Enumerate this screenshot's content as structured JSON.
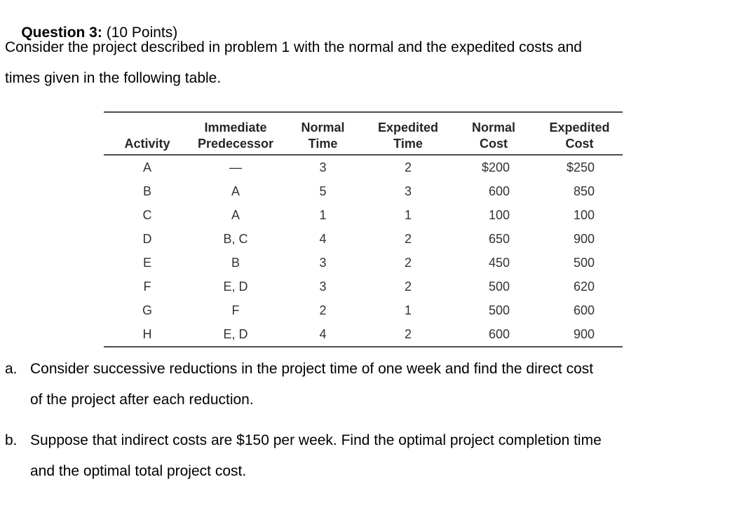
{
  "page": {
    "title_bold": "Question 3:",
    "title_rest": " (10 Points)",
    "intro_line1": "Consider the project described in problem 1 with the normal and the expedited costs and",
    "intro_line2": "times given in the following table."
  },
  "table": {
    "header_row1": [
      "",
      "Immediate",
      "Normal",
      "Expedited",
      "Normal",
      "Expedited"
    ],
    "header_row2": [
      "Activity",
      "Predecessor",
      "Time",
      "Time",
      "Cost",
      "Cost"
    ],
    "rows": [
      [
        "A",
        "—",
        "3",
        "2",
        "$200",
        "$250"
      ],
      [
        "B",
        "A",
        "5",
        "3",
        "600",
        "850"
      ],
      [
        "C",
        "A",
        "1",
        "1",
        "100",
        "100"
      ],
      [
        "D",
        "B, C",
        "4",
        "2",
        "650",
        "900"
      ],
      [
        "E",
        "B",
        "3",
        "2",
        "450",
        "500"
      ],
      [
        "F",
        "E, D",
        "3",
        "2",
        "500",
        "620"
      ],
      [
        "G",
        "F",
        "2",
        "1",
        "500",
        "600"
      ],
      [
        "H",
        "E, D",
        "4",
        "2",
        "600",
        "900"
      ]
    ]
  },
  "questions": [
    {
      "label": "a.",
      "line1": "Consider successive reductions in the project time of one week and find the direct cost",
      "line2": "of the project after each reduction."
    },
    {
      "label": "b.",
      "line1": "Suppose that indirect costs are $150 per week. Find the optimal project completion time",
      "line2": "and the optimal total project cost."
    }
  ]
}
